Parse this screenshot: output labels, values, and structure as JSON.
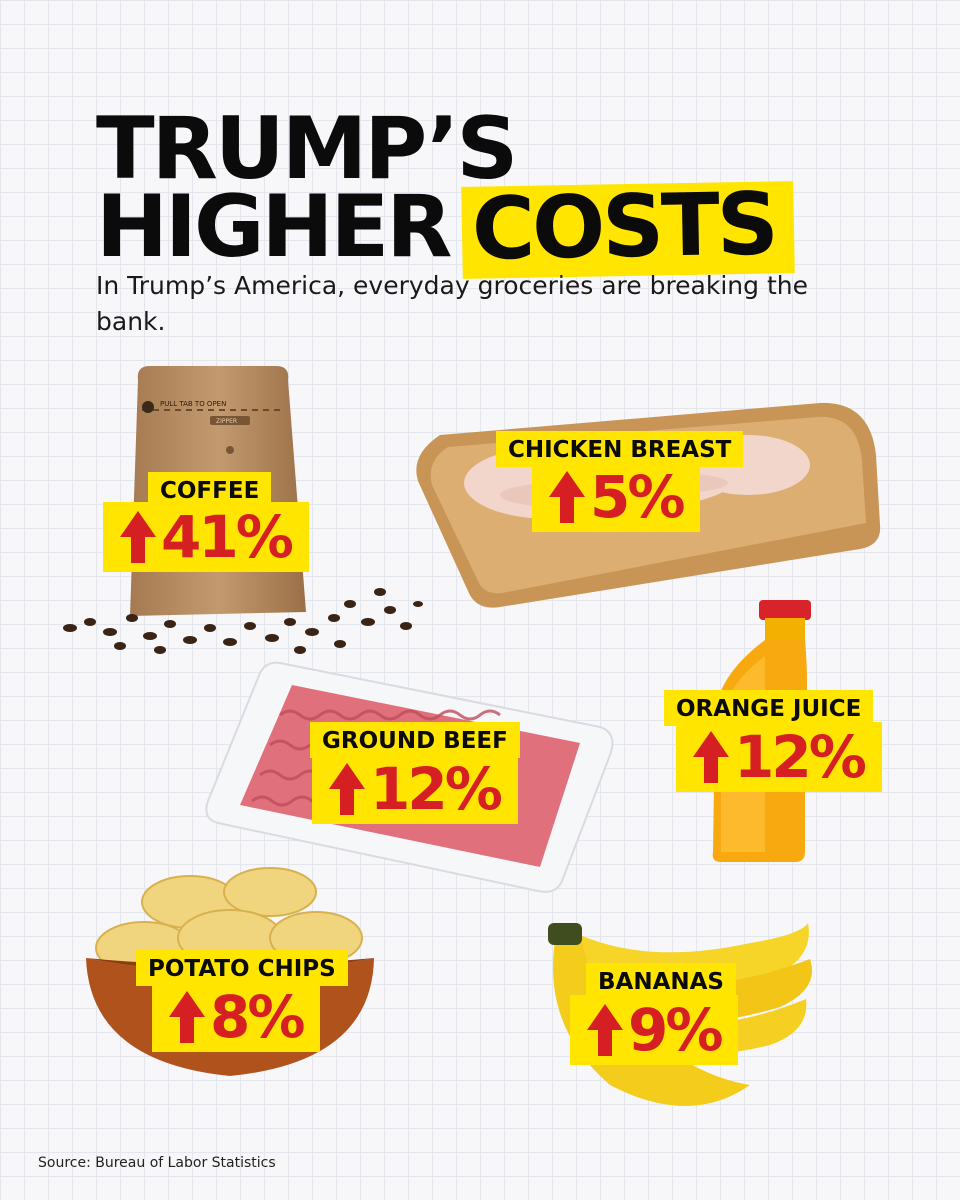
{
  "title": {
    "line1": "TRUMP’S",
    "line2_plain": "HIGHER",
    "line2_highlight": "COSTS"
  },
  "subtitle": "In Trump’s America, everyday groceries are breaking the bank.",
  "items": {
    "coffee": {
      "label": "COFFEE",
      "change": "41%"
    },
    "chicken": {
      "label": "CHICKEN BREAST",
      "change": "5%"
    },
    "juice": {
      "label": "ORANGE JUICE",
      "change": "12%"
    },
    "beef": {
      "label": "GROUND BEEF",
      "change": "12%"
    },
    "chips": {
      "label": "POTATO CHIPS",
      "change": "8%"
    },
    "bananas": {
      "label": "BANANAS",
      "change": "9%"
    }
  },
  "coffee_bag_print": {
    "pull_text": "PULL TAB TO OPEN",
    "zipper_text": "ZIPPER"
  },
  "source": "Source: Bureau of Labor Statistics",
  "colors": {
    "highlight": "#ffe500",
    "arrow": "#d51f22",
    "text": "#0b0b0b"
  },
  "icons": {
    "increase": "arrow-up-icon"
  }
}
